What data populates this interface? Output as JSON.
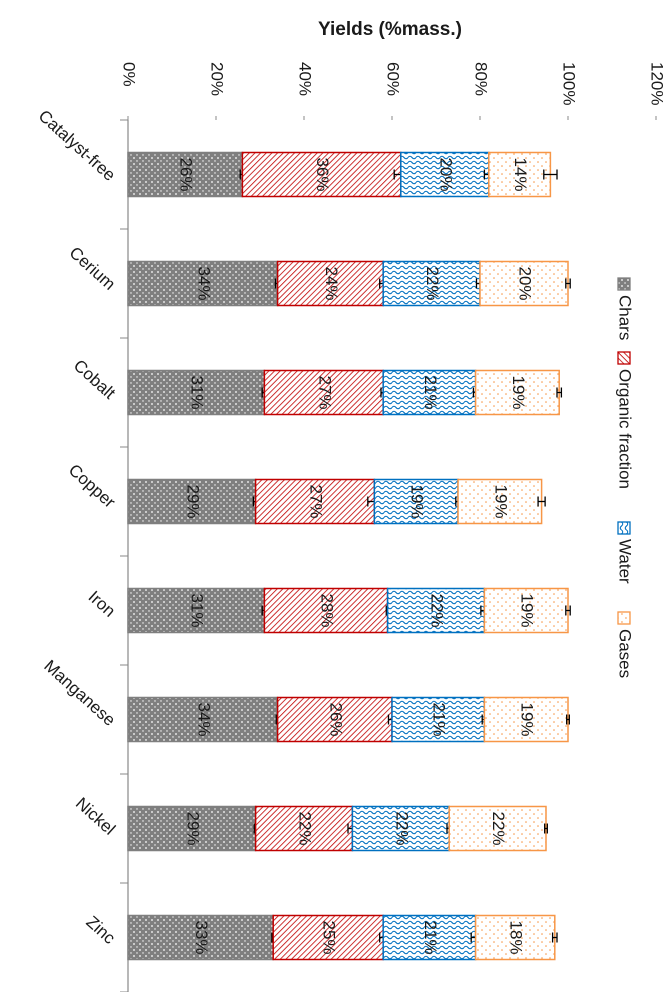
{
  "chart_data": {
    "type": "stacked_bar",
    "title": "Yields (%mass.)",
    "categories": [
      "Catalyst-free",
      "Cerium",
      "Cobalt",
      "Copper",
      "Iron",
      "Manganese",
      "Nickel",
      "Zinc"
    ],
    "series": [
      {
        "name": "Chars",
        "color": "#7f7f7f",
        "values": [
          26,
          34,
          31,
          29,
          31,
          34,
          29,
          33
        ],
        "value_labels": [
          "26%",
          "34%",
          "31%",
          "29%",
          "31%",
          "34%",
          "29%",
          "33%"
        ],
        "errors": [
          0.5,
          0.5,
          0.5,
          0.5,
          0.5,
          0.3,
          0.3,
          0.3
        ]
      },
      {
        "name": "Organic fraction",
        "color": "#c00000",
        "values": [
          36,
          24,
          27,
          27,
          28,
          26,
          22,
          25
        ],
        "value_labels": [
          "36%",
          "24%",
          "27%",
          "27%",
          "28%",
          "26%",
          "22%",
          "25%"
        ],
        "errors": [
          1.5,
          0.8,
          0.5,
          1.5,
          0.3,
          0.8,
          1,
          0.8
        ]
      },
      {
        "name": "Water",
        "color": "#0070c0",
        "values": [
          20,
          22,
          21,
          19,
          22,
          21,
          22,
          21
        ],
        "value_labels": [
          "20%",
          "22%",
          "21%",
          "19%",
          "22%",
          "21%",
          "22%",
          "21%"
        ],
        "errors": [
          1,
          0.8,
          0.5,
          0.5,
          0.8,
          0.5,
          0.5,
          1
        ]
      },
      {
        "name": "Gases",
        "color": "#f79646",
        "values": [
          14,
          20,
          19,
          19,
          19,
          19,
          22,
          18
        ],
        "value_labels": [
          "14%",
          "20%",
          "19%",
          "19%",
          "19%",
          "19%",
          "22%",
          "18%"
        ],
        "errors": [
          1.5,
          0.5,
          0.5,
          0.8,
          0.5,
          0.3,
          0.3,
          0.5
        ]
      }
    ],
    "xlim": [
      0,
      120
    ],
    "xticks": [
      {
        "value": 0,
        "label": "0%"
      },
      {
        "value": 20,
        "label": "20%"
      },
      {
        "value": 40,
        "label": "40%"
      },
      {
        "value": 60,
        "label": "60%"
      },
      {
        "value": 80,
        "label": "80%"
      },
      {
        "value": 100,
        "label": "100%"
      },
      {
        "value": 120,
        "label": "120%"
      }
    ],
    "legend": "right"
  }
}
